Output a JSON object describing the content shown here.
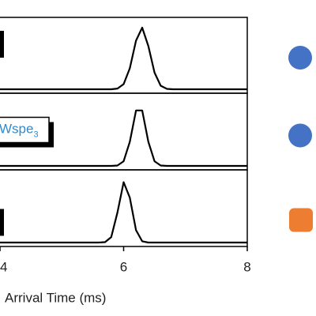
{
  "chart_data": {
    "type": "line",
    "xlabel": "Arrival Time (ms)",
    "xlim": [
      4,
      8
    ],
    "xticks": [
      4,
      6,
      8
    ],
    "ylim": [
      0,
      1
    ],
    "x": [
      4,
      5.6,
      5.7,
      5.8,
      5.9,
      6.0,
      6.1,
      6.2,
      6.3,
      6.4,
      6.5,
      6.6,
      6.7,
      6.8,
      8
    ],
    "series": [
      {
        "color": "#000000",
        "marker": {
          "shape": "circle",
          "color": "#4472c4"
        },
        "values": [
          0,
          0,
          0,
          0,
          0.011,
          0.083,
          0.34,
          0.79,
          1.0,
          0.7,
          0.27,
          0.058,
          0.007,
          0,
          0
        ]
      },
      {
        "color": "#000000",
        "marker": {
          "shape": "circle",
          "color": "#4472c4"
        },
        "values": [
          0,
          0,
          0,
          0,
          0.006,
          0.076,
          0.39,
          0.9,
          0.9,
          0.39,
          0.076,
          0.006,
          0,
          0,
          0
        ],
        "annotation": {
          "text": "Wspe",
          "sub": "3",
          "color": "#2e8bd0"
        }
      },
      {
        "color": "#000000",
        "marker": {
          "shape": "square",
          "color": "#ed7d31"
        },
        "values": [
          0,
          0,
          0.006,
          0.089,
          0.49,
          0.98,
          0.73,
          0.2,
          0.02,
          0,
          0,
          0,
          0,
          0,
          0
        ]
      }
    ]
  }
}
